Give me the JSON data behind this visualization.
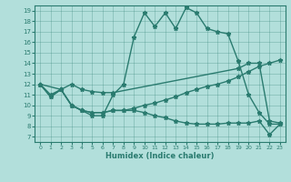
{
  "xlabel": "Humidex (Indice chaleur)",
  "bg_color": "#b2dfdb",
  "line_color": "#2a7b6f",
  "xlim": [
    -0.5,
    23.5
  ],
  "ylim": [
    6.5,
    19.5
  ],
  "xticks": [
    0,
    1,
    2,
    3,
    4,
    5,
    6,
    7,
    8,
    9,
    10,
    11,
    12,
    13,
    14,
    15,
    16,
    17,
    18,
    19,
    20,
    21,
    22,
    23
  ],
  "yticks": [
    7,
    8,
    9,
    10,
    11,
    12,
    13,
    14,
    15,
    16,
    17,
    18,
    19
  ],
  "line1_x": [
    0,
    1,
    2,
    3,
    4,
    5,
    6,
    7,
    8,
    9,
    10,
    11,
    12,
    13,
    14,
    15,
    16,
    17,
    18,
    19,
    20,
    21,
    22,
    23
  ],
  "line1_y": [
    12,
    11,
    11.5,
    10,
    9.5,
    9,
    9,
    11,
    12,
    16.5,
    18.8,
    17.5,
    18.8,
    17.3,
    19.3,
    18.8,
    17.3,
    17,
    16.8,
    14.2,
    11,
    9.3,
    8.2,
    8.2
  ],
  "line2_x": [
    0,
    2,
    3,
    4,
    5,
    6,
    7,
    19,
    20,
    21,
    22,
    23
  ],
  "line2_y": [
    12,
    11.5,
    12,
    11.5,
    11.3,
    11.2,
    11.2,
    13.5,
    14,
    14,
    8.5,
    8.3
  ],
  "line3_x": [
    0,
    1,
    2,
    3,
    4,
    5,
    6,
    7,
    8,
    9,
    10,
    11,
    12,
    13,
    14,
    15,
    16,
    17,
    18,
    19,
    20,
    21,
    22,
    23
  ],
  "line3_y": [
    12,
    10.8,
    11.5,
    10,
    9.5,
    9.3,
    9.3,
    9.5,
    9.5,
    9.7,
    10,
    10.2,
    10.5,
    10.8,
    11.2,
    11.5,
    11.8,
    12,
    12.3,
    12.7,
    13.2,
    13.7,
    14,
    14.3
  ],
  "line4_x": [
    0,
    1,
    2,
    3,
    4,
    5,
    6,
    7,
    8,
    9,
    10,
    11,
    12,
    13,
    14,
    15,
    16,
    17,
    18,
    19,
    20,
    21,
    22,
    23
  ],
  "line4_y": [
    12,
    10.8,
    11.5,
    10,
    9.5,
    9.3,
    9.3,
    9.5,
    9.5,
    9.5,
    9.3,
    9.0,
    8.8,
    8.5,
    8.3,
    8.2,
    8.2,
    8.2,
    8.3,
    8.3,
    8.3,
    8.5,
    7.2,
    8.2
  ]
}
